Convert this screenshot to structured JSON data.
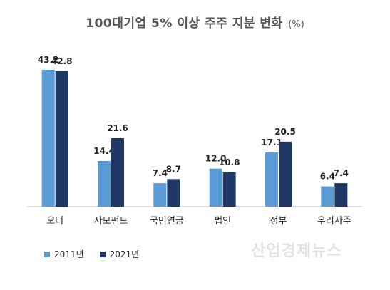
{
  "chart_data": {
    "type": "bar",
    "title": "100대기업 5% 이상 주주 지분 변화",
    "title_unit": "(%)",
    "categories": [
      "오너",
      "사모펀드",
      "국민연금",
      "법인",
      "정부",
      "우리사주"
    ],
    "series": [
      {
        "name": "2011년",
        "color": "#5b9bd5",
        "values": [
          43.2,
          14.4,
          7.4,
          12.0,
          17.1,
          6.4
        ]
      },
      {
        "name": "2021년",
        "color": "#1f3864",
        "values": [
          42.8,
          21.6,
          8.7,
          10.8,
          20.5,
          7.4
        ]
      }
    ],
    "ylim": [
      0,
      45
    ],
    "grid": false,
    "legend_position": "bottom-left",
    "value_labels": true
  },
  "watermark": "산업경제뉴스"
}
